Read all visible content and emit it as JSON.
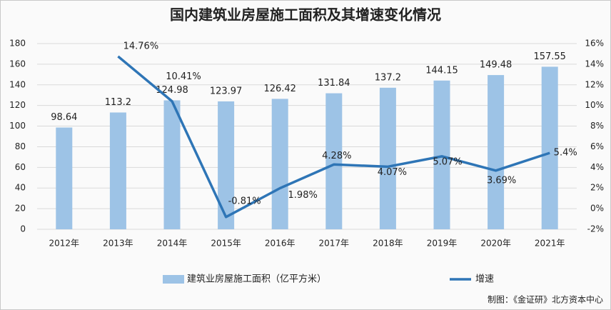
{
  "chart_data": {
    "type": "bar_line",
    "title": "国内建筑业房屋施工面积及其增速变化情况",
    "categories": [
      "2012年",
      "2013年",
      "2014年",
      "2015年",
      "2016年",
      "2017年",
      "2018年",
      "2019年",
      "2020年",
      "2021年"
    ],
    "series": [
      {
        "name": "建筑业房屋施工面积（亿平方米）",
        "type": "bar",
        "color": "#9dc3e6",
        "values": [
          98.64,
          113.2,
          124.98,
          123.97,
          126.42,
          131.84,
          137.2,
          144.15,
          149.48,
          157.55
        ]
      },
      {
        "name": "增速",
        "type": "line",
        "axis": "y2",
        "color": "#2e75b6",
        "values": [
          null,
          14.76,
          10.41,
          -0.81,
          1.98,
          4.28,
          4.07,
          5.07,
          3.69,
          5.4
        ],
        "value_labels": [
          null,
          "14.76%",
          "10.41%",
          "-0.81%",
          "1.98%",
          "4.28%",
          "4.07%",
          "5.07%",
          "3.69%",
          "5.4%"
        ]
      }
    ],
    "ylim": [
      0,
      180
    ],
    "yticks": [
      0,
      20,
      40,
      60,
      80,
      100,
      120,
      140,
      160,
      180
    ],
    "y2lim": [
      -2,
      16
    ],
    "y2ticks": [
      {
        "value": -2,
        "label": "-2%"
      },
      {
        "value": 0,
        "label": "0%"
      },
      {
        "value": 2,
        "label": "2%"
      },
      {
        "value": 4,
        "label": "4%"
      },
      {
        "value": 6,
        "label": "6%"
      },
      {
        "value": 8,
        "label": "8%"
      },
      {
        "value": 10,
        "label": "10%"
      },
      {
        "value": 12,
        "label": "12%"
      },
      {
        "value": 14,
        "label": "14%"
      },
      {
        "value": 16,
        "label": "16%"
      }
    ],
    "grid": true,
    "legend": "bottom",
    "source": "制图：《金证研》北方资本中心"
  }
}
